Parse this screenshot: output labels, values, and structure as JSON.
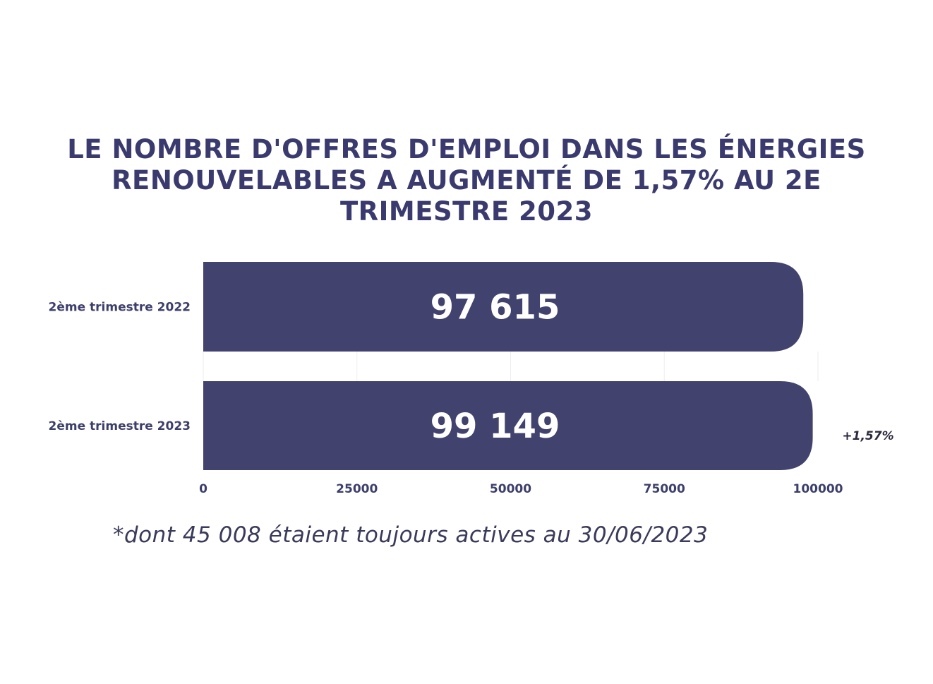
{
  "title": "Le nombre d'offres d'emploi dans les énergies renouvelables a augmenté de 1,57% au 2e trimestre 2023",
  "footnote": "*dont 45 008 étaient toujours actives au 30/06/2023",
  "colors": {
    "bar": "#41426d",
    "title": "#3a3a6e",
    "category_label": "#3d3f6b",
    "bar_label": "#ffffff",
    "annotation": "#2b2b3f",
    "grid": "#eeeeee"
  },
  "chart_data": {
    "type": "bar",
    "orientation": "horizontal",
    "categories": [
      "2ème trimestre 2022",
      "2ème trimestre 2023"
    ],
    "values": [
      97615,
      99149
    ],
    "data_labels": [
      "97 615",
      "99 149"
    ],
    "xlim": [
      0,
      100000
    ],
    "x_ticks": [
      0,
      25000,
      50000,
      75000,
      100000
    ],
    "x_tick_labels": [
      "0",
      "25000",
      "50000",
      "75000",
      "100000"
    ],
    "annotation": "+1,57%",
    "grid": true
  }
}
